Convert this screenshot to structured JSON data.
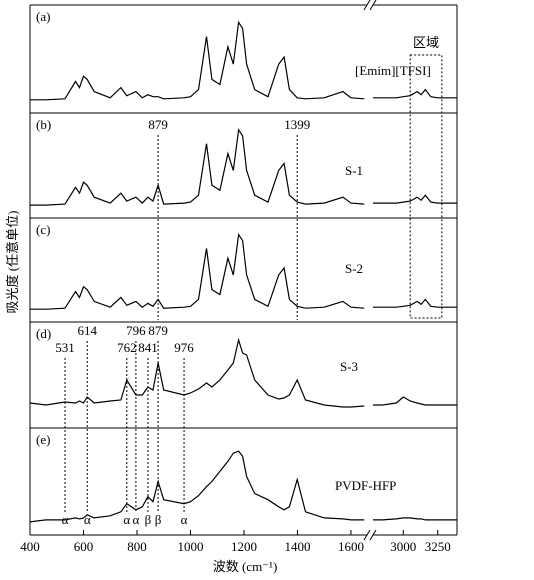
{
  "chart_data": [
    {
      "type": "line",
      "label": "(a)",
      "name": "[Emim][TFSI]",
      "ylabel": "吸光度 (任意单位)",
      "ylim": [
        0,
        1
      ],
      "region": {
        "label": "区域",
        "xlim": [
          3050,
          3280
        ]
      },
      "x": [
        400,
        460,
        531,
        570,
        585,
        600,
        614,
        640,
        700,
        740,
        762,
        796,
        820,
        841,
        860,
        879,
        900,
        976,
        1000,
        1030,
        1060,
        1080,
        1110,
        1140,
        1160,
        1180,
        1195,
        1210,
        1240,
        1290,
        1330,
        1350,
        1370,
        1399,
        1430,
        1500,
        1570,
        1600,
        1650
      ],
      "values": [
        0.1,
        0.1,
        0.11,
        0.28,
        0.22,
        0.33,
        0.3,
        0.18,
        0.12,
        0.22,
        0.14,
        0.18,
        0.12,
        0.15,
        0.13,
        0.13,
        0.11,
        0.12,
        0.13,
        0.2,
        0.72,
        0.3,
        0.25,
        0.62,
        0.45,
        0.86,
        0.8,
        0.45,
        0.2,
        0.13,
        0.45,
        0.52,
        0.2,
        0.12,
        0.11,
        0.12,
        0.18,
        0.12,
        0.11
      ],
      "x2": [
        2780,
        2850,
        2950,
        3000,
        3050,
        3100,
        3130,
        3160,
        3200,
        3250,
        3300,
        3390
      ],
      "values2": [
        0.12,
        0.12,
        0.12,
        0.13,
        0.14,
        0.18,
        0.15,
        0.2,
        0.13,
        0.12,
        0.12,
        0.12
      ]
    },
    {
      "type": "line",
      "label": "(b)",
      "name": "S-1",
      "ylim": [
        0,
        1
      ],
      "markers": [
        879,
        1399
      ],
      "x": [
        400,
        460,
        531,
        570,
        585,
        600,
        614,
        640,
        700,
        740,
        762,
        796,
        820,
        841,
        860,
        879,
        900,
        976,
        1000,
        1030,
        1060,
        1080,
        1110,
        1140,
        1160,
        1180,
        1195,
        1210,
        1240,
        1290,
        1330,
        1350,
        1370,
        1399,
        1430,
        1500,
        1570,
        1600,
        1650
      ],
      "values": [
        0.1,
        0.1,
        0.11,
        0.28,
        0.22,
        0.33,
        0.3,
        0.18,
        0.12,
        0.22,
        0.14,
        0.18,
        0.12,
        0.18,
        0.14,
        0.3,
        0.11,
        0.12,
        0.13,
        0.2,
        0.72,
        0.3,
        0.25,
        0.62,
        0.45,
        0.86,
        0.8,
        0.45,
        0.2,
        0.13,
        0.45,
        0.52,
        0.2,
        0.13,
        0.11,
        0.12,
        0.18,
        0.12,
        0.11
      ],
      "x2": [
        2780,
        2850,
        2950,
        3000,
        3050,
        3100,
        3130,
        3160,
        3200,
        3250,
        3300,
        3390
      ],
      "values2": [
        0.12,
        0.12,
        0.12,
        0.13,
        0.14,
        0.18,
        0.15,
        0.2,
        0.13,
        0.12,
        0.12,
        0.12
      ]
    },
    {
      "type": "line",
      "label": "(c)",
      "name": "S-2",
      "ylim": [
        0,
        1
      ],
      "x": [
        400,
        460,
        531,
        570,
        585,
        600,
        614,
        640,
        700,
        740,
        762,
        796,
        820,
        841,
        860,
        879,
        900,
        976,
        1000,
        1030,
        1060,
        1080,
        1110,
        1140,
        1160,
        1180,
        1195,
        1210,
        1240,
        1290,
        1330,
        1350,
        1370,
        1399,
        1430,
        1500,
        1570,
        1600,
        1650
      ],
      "values": [
        0.1,
        0.1,
        0.11,
        0.28,
        0.22,
        0.33,
        0.3,
        0.18,
        0.12,
        0.22,
        0.14,
        0.18,
        0.12,
        0.16,
        0.13,
        0.2,
        0.11,
        0.12,
        0.13,
        0.2,
        0.72,
        0.3,
        0.25,
        0.62,
        0.45,
        0.86,
        0.8,
        0.45,
        0.2,
        0.13,
        0.45,
        0.52,
        0.2,
        0.13,
        0.11,
        0.12,
        0.18,
        0.12,
        0.11
      ],
      "x2": [
        2780,
        2850,
        2950,
        3000,
        3050,
        3100,
        3130,
        3160,
        3200,
        3250,
        3300,
        3390
      ],
      "values2": [
        0.12,
        0.12,
        0.12,
        0.13,
        0.14,
        0.18,
        0.15,
        0.2,
        0.13,
        0.12,
        0.12,
        0.12
      ]
    },
    {
      "type": "line",
      "label": "(d)",
      "name": "S-3",
      "ylim": [
        0,
        1
      ],
      "markers": [
        531,
        614,
        762,
        796,
        841,
        879,
        976
      ],
      "x": [
        400,
        460,
        531,
        570,
        585,
        600,
        614,
        640,
        700,
        740,
        762,
        796,
        820,
        841,
        860,
        879,
        900,
        976,
        1000,
        1030,
        1060,
        1080,
        1110,
        1140,
        1160,
        1180,
        1195,
        1210,
        1240,
        1290,
        1330,
        1350,
        1370,
        1399,
        1430,
        1500,
        1570,
        1600,
        1650
      ],
      "values": [
        0.22,
        0.2,
        0.23,
        0.22,
        0.24,
        0.22,
        0.28,
        0.22,
        0.24,
        0.25,
        0.45,
        0.3,
        0.3,
        0.38,
        0.35,
        0.62,
        0.35,
        0.3,
        0.32,
        0.36,
        0.42,
        0.38,
        0.45,
        0.55,
        0.62,
        0.85,
        0.72,
        0.7,
        0.45,
        0.3,
        0.26,
        0.27,
        0.3,
        0.45,
        0.25,
        0.2,
        0.18,
        0.18,
        0.19
      ],
      "x2": [
        2780,
        2850,
        2950,
        3000,
        3050,
        3100,
        3130,
        3160,
        3200,
        3250,
        3300,
        3390
      ],
      "values2": [
        0.2,
        0.2,
        0.22,
        0.28,
        0.24,
        0.22,
        0.21,
        0.2,
        0.2,
        0.2,
        0.2,
        0.2
      ]
    },
    {
      "type": "line",
      "label": "(e)",
      "name": "PVDF-HFP",
      "ylim": [
        0,
        1
      ],
      "markers": [
        {
          "value": 531,
          "label": "α"
        },
        {
          "value": 614,
          "label": "α"
        },
        {
          "value": 762,
          "label": "α"
        },
        {
          "value": 796,
          "label": "α"
        },
        {
          "value": 841,
          "label": "β"
        },
        {
          "value": 879,
          "label": "β"
        },
        {
          "value": 976,
          "label": "α"
        }
      ],
      "x": [
        400,
        460,
        531,
        570,
        585,
        600,
        614,
        640,
        700,
        740,
        762,
        796,
        820,
        841,
        860,
        879,
        900,
        976,
        1000,
        1030,
        1060,
        1080,
        1110,
        1140,
        1160,
        1180,
        1195,
        1210,
        1240,
        1290,
        1330,
        1350,
        1370,
        1399,
        1430,
        1500,
        1570,
        1600,
        1650
      ],
      "values": [
        0.1,
        0.12,
        0.12,
        0.14,
        0.13,
        0.14,
        0.17,
        0.14,
        0.16,
        0.2,
        0.28,
        0.22,
        0.25,
        0.35,
        0.3,
        0.5,
        0.32,
        0.28,
        0.3,
        0.36,
        0.45,
        0.5,
        0.6,
        0.7,
        0.78,
        0.8,
        0.75,
        0.55,
        0.38,
        0.32,
        0.25,
        0.22,
        0.25,
        0.52,
        0.2,
        0.14,
        0.13,
        0.12,
        0.12
      ],
      "x2": [
        2780,
        2850,
        2950,
        3000,
        3050,
        3100,
        3130,
        3160,
        3200,
        3250,
        3300,
        3390
      ],
      "values2": [
        0.12,
        0.12,
        0.13,
        0.14,
        0.14,
        0.13,
        0.13,
        0.12,
        0.12,
        0.12,
        0.12,
        0.12
      ],
      "xlabel": "波数 (cm⁻¹)",
      "xlim": [
        400,
        1660
      ],
      "xticks": [
        400,
        600,
        800,
        1000,
        1200,
        1400,
        1600
      ],
      "x2lim": [
        2780,
        3390
      ],
      "x2ticks": [
        3000,
        3250
      ]
    }
  ]
}
